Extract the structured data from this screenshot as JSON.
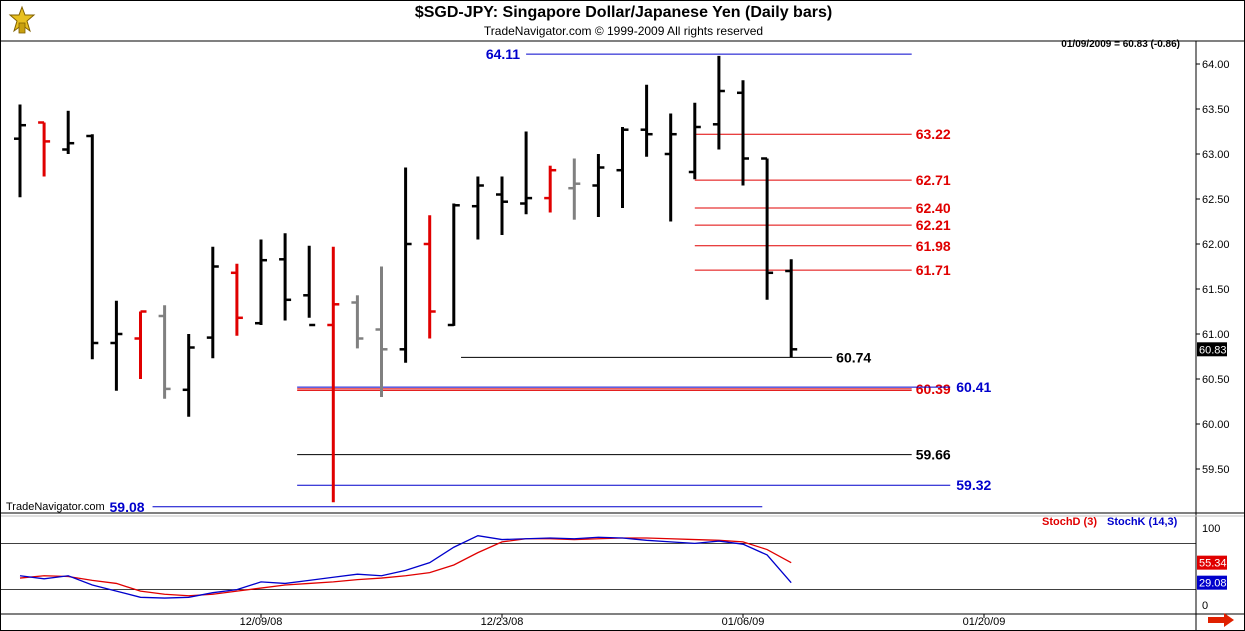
{
  "header": {
    "title": "$SGD-JPY:  Singapore Dollar/Japanese Yen  (Daily bars)",
    "subtitle": "TradeNavigator.com © 1999-2009 All rights reserved",
    "quote": "01/09/2009 = 60.83 (-0.86)"
  },
  "watermark": "TradeNavigator.com",
  "colors": {
    "black": "#000000",
    "red": "#e00000",
    "gray": "#808080",
    "blue": "#0000cc",
    "stoch_d": "#e00000",
    "stoch_k": "#0000cc",
    "label_red_bg": "#e00000",
    "label_blue_bg": "#0000cc"
  },
  "chart_data": [
    {
      "type": "ohlc",
      "price_axis": {
        "min": 59.08,
        "max": 64.11,
        "ticks": [
          "64.00",
          "63.50",
          "63.00",
          "62.50",
          "62.00",
          "61.50",
          "61.00",
          "60.50",
          "60.00",
          "59.50"
        ]
      },
      "last_price_label": "60.83",
      "date_axis": {
        "labels": [
          "12/09/08",
          "12/23/08",
          "01/06/09",
          "01/20/09"
        ]
      },
      "bars": [
        {
          "o": 63.17,
          "h": 63.55,
          "l": 62.52,
          "c": 63.32,
          "color": "black"
        },
        {
          "o": 63.35,
          "h": 63.35,
          "l": 62.75,
          "c": 63.14,
          "color": "red"
        },
        {
          "o": 63.05,
          "h": 63.48,
          "l": 63.0,
          "c": 63.12,
          "color": "black"
        },
        {
          "o": 63.2,
          "h": 63.22,
          "l": 60.72,
          "c": 60.9,
          "color": "black"
        },
        {
          "o": 60.9,
          "h": 61.37,
          "l": 60.37,
          "c": 61.0,
          "color": "black"
        },
        {
          "o": 60.95,
          "h": 61.25,
          "l": 60.5,
          "c": 61.25,
          "color": "red"
        },
        {
          "o": 61.2,
          "h": 61.32,
          "l": 60.28,
          "c": 60.39,
          "color": "gray"
        },
        {
          "o": 60.38,
          "h": 61.0,
          "l": 60.08,
          "c": 60.85,
          "color": "black"
        },
        {
          "o": 60.96,
          "h": 61.97,
          "l": 60.73,
          "c": 61.75,
          "color": "black"
        },
        {
          "o": 61.68,
          "h": 61.78,
          "l": 60.98,
          "c": 61.18,
          "color": "red"
        },
        {
          "o": 61.12,
          "h": 62.05,
          "l": 61.1,
          "c": 61.82,
          "color": "black"
        },
        {
          "o": 61.83,
          "h": 62.12,
          "l": 61.15,
          "c": 61.38,
          "color": "black"
        },
        {
          "o": 61.43,
          "h": 61.98,
          "l": 61.18,
          "c": 61.1,
          "color": "black"
        },
        {
          "o": 61.1,
          "h": 61.97,
          "l": 59.13,
          "c": 61.33,
          "color": "red"
        },
        {
          "o": 61.35,
          "h": 61.43,
          "l": 60.84,
          "c": 60.95,
          "color": "gray"
        },
        {
          "o": 61.05,
          "h": 61.75,
          "l": 60.3,
          "c": 60.83,
          "color": "gray"
        },
        {
          "o": 60.83,
          "h": 62.85,
          "l": 60.68,
          "c": 62.0,
          "color": "black"
        },
        {
          "o": 62.0,
          "h": 62.32,
          "l": 60.95,
          "c": 61.25,
          "color": "red"
        },
        {
          "o": 61.1,
          "h": 62.45,
          "l": 61.09,
          "c": 62.43,
          "color": "black"
        },
        {
          "o": 62.42,
          "h": 62.75,
          "l": 62.05,
          "c": 62.65,
          "color": "black"
        },
        {
          "o": 62.55,
          "h": 62.75,
          "l": 62.1,
          "c": 62.47,
          "color": "black"
        },
        {
          "o": 62.45,
          "h": 63.25,
          "l": 62.33,
          "c": 62.51,
          "color": "black"
        },
        {
          "o": 62.51,
          "h": 62.87,
          "l": 62.35,
          "c": 62.82,
          "color": "red"
        },
        {
          "o": 62.62,
          "h": 62.95,
          "l": 62.27,
          "c": 62.67,
          "color": "gray"
        },
        {
          "o": 62.65,
          "h": 63.0,
          "l": 62.3,
          "c": 62.85,
          "color": "black"
        },
        {
          "o": 62.82,
          "h": 63.3,
          "l": 62.4,
          "c": 63.27,
          "color": "black"
        },
        {
          "o": 63.27,
          "h": 63.77,
          "l": 62.97,
          "c": 63.22,
          "color": "black"
        },
        {
          "o": 63.0,
          "h": 63.45,
          "l": 62.25,
          "c": 63.22,
          "color": "black"
        },
        {
          "o": 62.8,
          "h": 63.57,
          "l": 62.72,
          "c": 63.3,
          "color": "black"
        },
        {
          "o": 63.33,
          "h": 64.09,
          "l": 63.05,
          "c": 63.7,
          "color": "black"
        },
        {
          "o": 63.68,
          "h": 63.82,
          "l": 62.65,
          "c": 62.95,
          "color": "black"
        },
        {
          "o": 62.95,
          "h": 62.95,
          "l": 61.38,
          "c": 61.68,
          "color": "black"
        },
        {
          "o": 61.7,
          "h": 61.83,
          "l": 60.74,
          "c": 60.83,
          "color": "black"
        }
      ],
      "levels": [
        {
          "value": 64.11,
          "label": "64.11",
          "color": "blue",
          "from_bar": 21,
          "to_bar": 37,
          "label_side": "left"
        },
        {
          "value": 63.22,
          "label": "63.22",
          "color": "red",
          "from_bar": 28,
          "to_bar": 37,
          "label_side": "right"
        },
        {
          "value": 62.71,
          "label": "62.71",
          "color": "red",
          "from_bar": 28,
          "to_bar": 37,
          "label_side": "right"
        },
        {
          "value": 62.4,
          "label": "62.40",
          "color": "red",
          "from_bar": 28,
          "to_bar": 37,
          "label_side": "right"
        },
        {
          "value": 62.21,
          "label": "62.21",
          "color": "red",
          "from_bar": 28,
          "to_bar": 37,
          "label_side": "right"
        },
        {
          "value": 61.98,
          "label": "61.98",
          "color": "red",
          "from_bar": 28,
          "to_bar": 37,
          "label_side": "right"
        },
        {
          "value": 61.71,
          "label": "61.71",
          "color": "red",
          "from_bar": 28,
          "to_bar": 37,
          "label_side": "right"
        },
        {
          "value": 60.74,
          "label": "60.74",
          "color": "black",
          "from_bar": 18.3,
          "to_bar": 33.7,
          "label_side": "right"
        },
        {
          "value": 60.39,
          "label": "60.39",
          "color": "red",
          "from_bar": 11.5,
          "to_bar": 37,
          "label_side": "right"
        },
        {
          "value": 60.41,
          "label": "60.41",
          "color": "blue",
          "from_bar": 11.5,
          "to_bar": 38.6,
          "label_side": "right2"
        },
        {
          "value": 59.66,
          "label": "59.66",
          "color": "black",
          "from_bar": 11.5,
          "to_bar": 37,
          "label_side": "right"
        },
        {
          "value": 59.32,
          "label": "59.32",
          "color": "blue",
          "from_bar": 11.5,
          "to_bar": 38.6,
          "label_side": "right2"
        },
        {
          "value": 59.08,
          "label": "59.08",
          "color": "blue",
          "from_bar": 5.5,
          "to_bar": 30.8,
          "label_side": "left"
        }
      ]
    },
    {
      "type": "line",
      "title": "StochD (3)   StochK (14,3)",
      "series": [
        {
          "name": "StochD (3)",
          "color": "red",
          "value_label": "55.34",
          "values": [
            35,
            38,
            37,
            32,
            28,
            18,
            14,
            12,
            14,
            18,
            22,
            26,
            28,
            30,
            33,
            35,
            38,
            42,
            52,
            68,
            82,
            86,
            86,
            85,
            86,
            87,
            87,
            86,
            85,
            84,
            82,
            72,
            55
          ]
        },
        {
          "name": "StochK (14,3)",
          "color": "blue",
          "value_label": "29.08",
          "values": [
            38,
            34,
            38,
            26,
            18,
            10,
            9,
            10,
            16,
            20,
            30,
            28,
            32,
            36,
            40,
            38,
            45,
            55,
            75,
            90,
            85,
            86,
            87,
            86,
            88,
            87,
            84,
            82,
            80,
            83,
            79,
            65,
            29
          ]
        }
      ],
      "ylim": [
        0,
        100
      ],
      "ticks": [
        "100",
        "0"
      ],
      "reference_lines": [
        80,
        20
      ]
    }
  ]
}
